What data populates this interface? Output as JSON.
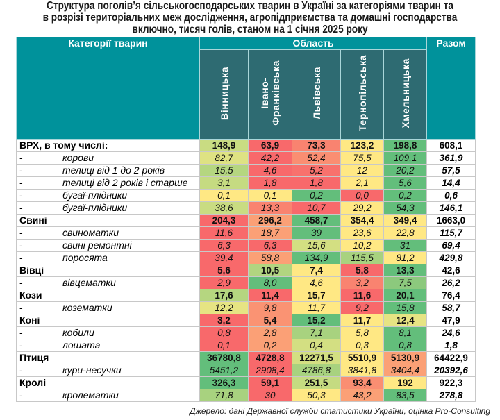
{
  "title": {
    "line1": "Структура поголів’я сільськогосподарських тварин в Україні за категоріями тварин та",
    "line2": "в розрізі територіальних меж дослідження, агропідприємства та домашні господарства",
    "line3": "включно, тисяч голів, станом на 1 січня 2025 року"
  },
  "header": {
    "category": "Категорії тварин",
    "region_group": "Область",
    "total": "Разом",
    "regions": [
      "Вінницька",
      "Івано-\nФранківська",
      "Львівська",
      "Тернопільська",
      "Хмельницька"
    ]
  },
  "colors": {
    "header_teal": "#00929B",
    "header_dark": "#2E6B72",
    "red": "#F8696B",
    "orange": "#FA9D75",
    "yellow": "#FFEB84",
    "light_green": "#B1D580",
    "green": "#63BE7B"
  },
  "rows": [
    {
      "type": "main",
      "label": "ВРХ, в тому числі:",
      "values": [
        "148,9",
        "63,9",
        "73,3",
        "123,2",
        "198,8"
      ],
      "total": "608,1",
      "colors": [
        "#C9DC82",
        "#F8696B",
        "#F98370",
        "#FFE884",
        "#63BE7B"
      ]
    },
    {
      "type": "sub",
      "dash": "-",
      "label": "корови",
      "values": [
        "82,7",
        "42,2",
        "52,4",
        "75,5",
        "109,1"
      ],
      "total": "361,9",
      "colors": [
        "#DEE283",
        "#F8696B",
        "#FA8E72",
        "#FFE884",
        "#63BE7B"
      ]
    },
    {
      "type": "sub",
      "dash": "-",
      "label": "телиці від 1 до 2 років",
      "values": [
        "15,5",
        "4,6",
        "5,2",
        "12",
        "20,2"
      ],
      "total": "57,5",
      "colors": [
        "#B5D680",
        "#F8696B",
        "#F8716D",
        "#FFE884",
        "#63BE7B"
      ]
    },
    {
      "type": "sub",
      "dash": "-",
      "label": "телиці від 2 років і старше",
      "values": [
        "3,1",
        "1,8",
        "1,8",
        "2,1",
        "5,6"
      ],
      "total": "14,4",
      "colors": [
        "#C5DB81",
        "#F8696B",
        "#F8696B",
        "#FFE884",
        "#63BE7B"
      ]
    },
    {
      "type": "sub",
      "dash": "-",
      "label": "бугаї-плідники",
      "values": [
        "0,1",
        "0,1",
        "0,2",
        "0,0",
        "0,2"
      ],
      "total": "0,6",
      "colors": [
        "#FFE884",
        "#FFE884",
        "#63BE7B",
        "#F8696B",
        "#63BE7B"
      ]
    },
    {
      "type": "sub",
      "dash": "-",
      "label": "бугаї-плідники",
      "values": [
        "38,6",
        "13,3",
        "10,7",
        "29,2",
        "54,3"
      ],
      "total": "146,1",
      "colors": [
        "#C9DC82",
        "#F98370",
        "#F8696B",
        "#FFE884",
        "#63BE7B"
      ]
    },
    {
      "type": "main",
      "label": "Свині",
      "values": [
        "204,3",
        "296,2",
        "458,7",
        "354,4",
        "349,4"
      ],
      "total": "1663,0",
      "colors": [
        "#F8696B",
        "#FBA076",
        "#63BE7B",
        "#FFE884",
        "#FFE884"
      ]
    },
    {
      "type": "sub",
      "dash": "-",
      "label": "свиноматки",
      "values": [
        "11,6",
        "18,7",
        "39",
        "23,6",
        "22,8"
      ],
      "total": "115,7",
      "colors": [
        "#F8696B",
        "#FBA076",
        "#63BE7B",
        "#FFE884",
        "#FFE884"
      ]
    },
    {
      "type": "sub",
      "dash": "-",
      "label": "свині ремонтні",
      "values": [
        "6,3",
        "6,3",
        "15,6",
        "10,2",
        "31"
      ],
      "total": "69,4",
      "colors": [
        "#F8696B",
        "#F8696B",
        "#D3DF82",
        "#FFE884",
        "#63BE7B"
      ]
    },
    {
      "type": "sub",
      "dash": "-",
      "label": "поросята",
      "values": [
        "39,4",
        "58,8",
        "134,9",
        "115,5",
        "81,2"
      ],
      "total": "429,8",
      "colors": [
        "#F8696B",
        "#FBA076",
        "#63BE7B",
        "#A8D27F",
        "#FFE884"
      ]
    },
    {
      "type": "main",
      "label": "Вівці",
      "values": [
        "5,6",
        "10,5",
        "7,4",
        "5,8",
        "13,3"
      ],
      "total": "42,6",
      "colors": [
        "#F8696B",
        "#B1D580",
        "#FFE884",
        "#F8696B",
        "#63BE7B"
      ]
    },
    {
      "type": "sub",
      "dash": "-",
      "label": "вівцематки",
      "values": [
        "2,9",
        "8,0",
        "4,6",
        "3,2",
        "7,5"
      ],
      "total": "26,2",
      "colors": [
        "#F8696B",
        "#63BE7B",
        "#FFE884",
        "#F98370",
        "#8CC97D"
      ]
    },
    {
      "type": "main",
      "label": "Кози",
      "values": [
        "17,6",
        "11,4",
        "15,7",
        "11,6",
        "20,1"
      ],
      "total": "76,4",
      "colors": [
        "#B5D680",
        "#F8696B",
        "#FFE884",
        "#F8696B",
        "#63BE7B"
      ]
    },
    {
      "type": "sub",
      "dash": "-",
      "label": "козематки",
      "values": [
        "12,2",
        "9,8",
        "11,7",
        "9,2",
        "15,8"
      ],
      "total": "58,7",
      "colors": [
        "#E6E483",
        "#FA9373",
        "#FFE884",
        "#F8696B",
        "#63BE7B"
      ]
    },
    {
      "type": "main",
      "label": "Коні",
      "values": [
        "3,2",
        "5,4",
        "15,2",
        "11,7",
        "12,4"
      ],
      "total": "47,9",
      "colors": [
        "#F8696B",
        "#FA9373",
        "#63BE7B",
        "#FFE884",
        "#E6E483"
      ]
    },
    {
      "type": "sub",
      "dash": "-",
      "label": "кобили",
      "values": [
        "0,8",
        "2,8",
        "7,1",
        "5,8",
        "8,1"
      ],
      "total": "24,6",
      "colors": [
        "#F8696B",
        "#FBA076",
        "#A8D27F",
        "#FFE884",
        "#63BE7B"
      ]
    },
    {
      "type": "sub",
      "dash": "-",
      "label": "лошата",
      "values": [
        "0,1",
        "0,2",
        "0,4",
        "0,3",
        "0,8"
      ],
      "total": "1,8",
      "colors": [
        "#F8696B",
        "#FBA076",
        "#D3DF82",
        "#FFE884",
        "#63BE7B"
      ]
    },
    {
      "type": "main",
      "label": "Птиця",
      "values": [
        "36780,8",
        "4728,8",
        "12271,5",
        "5510,9",
        "5130,9"
      ],
      "total": "64422,9",
      "colors": [
        "#63BE7B",
        "#F8696B",
        "#D3DF82",
        "#FFE884",
        "#FBA076"
      ]
    },
    {
      "type": "sub",
      "dash": "-",
      "label": "кури-несучки",
      "values": [
        "5451,2",
        "2908,4",
        "4786,8",
        "3841,8",
        "3404,4"
      ],
      "total": "20392,6",
      "colors": [
        "#63BE7B",
        "#F8696B",
        "#A8D27F",
        "#FFE884",
        "#FBA076"
      ]
    },
    {
      "type": "main",
      "label": "Кролі",
      "values": [
        "326,3",
        "59,1",
        "251,5",
        "93,4",
        "192"
      ],
      "total": "922,3",
      "colors": [
        "#63BE7B",
        "#F8696B",
        "#C5DB81",
        "#FA8E72",
        "#FFE884"
      ]
    },
    {
      "type": "sub",
      "dash": "-",
      "label": "кролематки",
      "values": [
        "71,8",
        "30",
        "50,3",
        "43,2",
        "83,5"
      ],
      "total": "278,8",
      "colors": [
        "#A8D27F",
        "#F8696B",
        "#FFE884",
        "#FBA076",
        "#63BE7B"
      ]
    }
  ],
  "source": "Джерело: дані Державної служби статистики України, оцінка Pro-Consulting"
}
